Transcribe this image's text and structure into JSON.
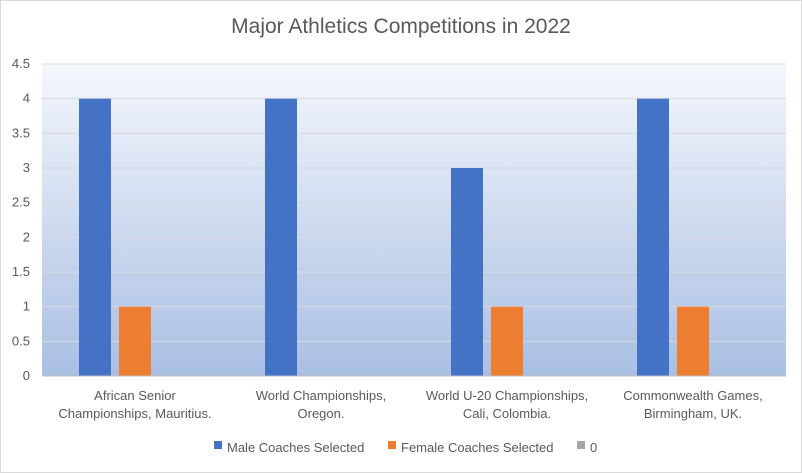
{
  "chart_data": {
    "type": "bar",
    "title": "Major Athletics Competitions in 2022",
    "categories": [
      [
        "African Senior",
        "Championships, Mauritius."
      ],
      [
        "World Championships,",
        "Oregon."
      ],
      [
        "World U-20 Championships,",
        "Cali, Colombia."
      ],
      [
        "Commonwealth Games,",
        "Birmingham, UK."
      ]
    ],
    "series": [
      {
        "name": "Male Coaches Selected",
        "values": [
          4,
          4,
          3,
          4
        ],
        "color": "#4472C4"
      },
      {
        "name": "Female Coaches Selected",
        "values": [
          1,
          0,
          1,
          1
        ],
        "color": "#ED7D31"
      },
      {
        "name": "0",
        "values": [
          0,
          0,
          0,
          0
        ],
        "color": "#A5A5A5"
      }
    ],
    "ylim": [
      0,
      4.5
    ],
    "yticks": [
      "0",
      "0.5",
      "1",
      "1.5",
      "2",
      "2.5",
      "3",
      "3.5",
      "4",
      "4.5"
    ],
    "grid": true,
    "legend": "bottom",
    "plot_background": "gradient light-blue"
  }
}
